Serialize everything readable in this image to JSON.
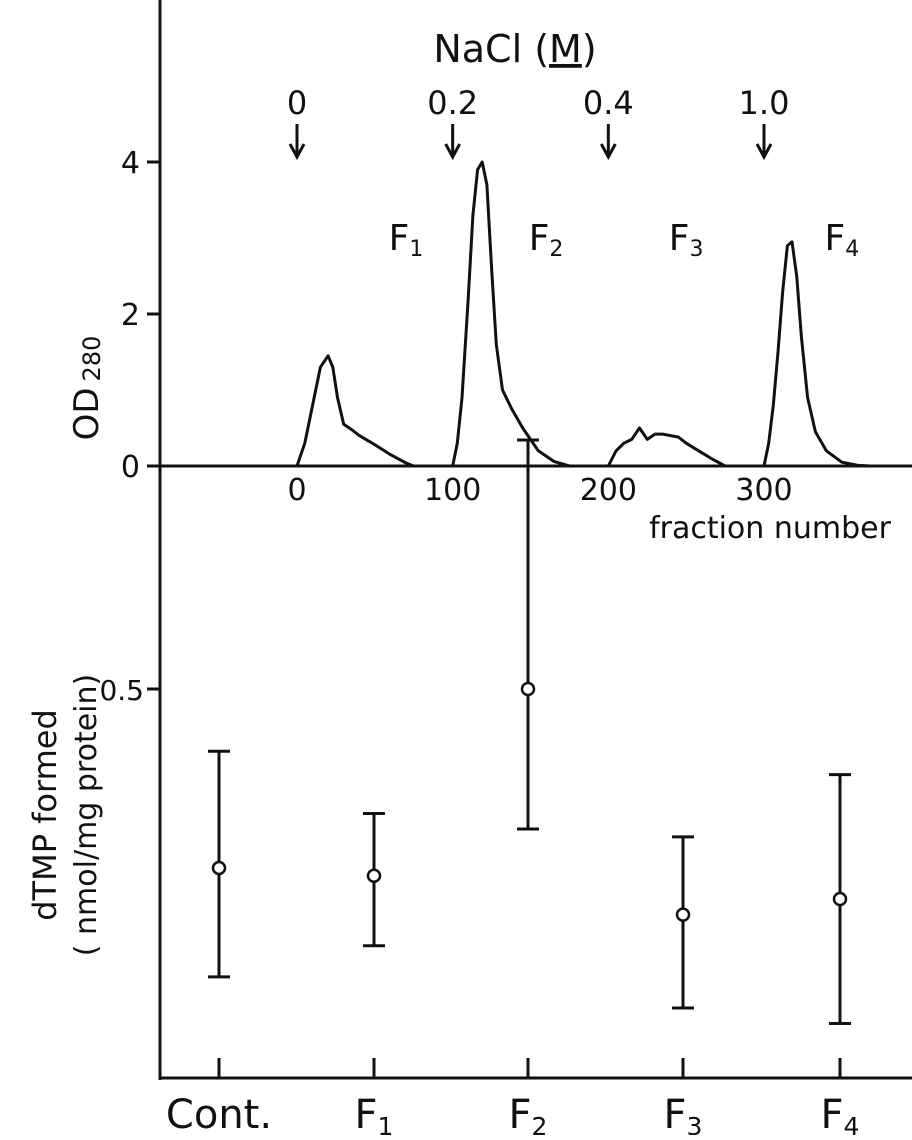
{
  "chart_data": [
    {
      "type": "line",
      "title": "",
      "xlabel": "fraction number",
      "ylabel": "OD 280",
      "ylabel_main": "OD",
      "ylabel_sub": "280",
      "xlim": [
        -40,
        385
      ],
      "ylim": [
        0,
        6
      ],
      "x_ticks": [
        0,
        100,
        200,
        300
      ],
      "x_tick_labels": [
        "0",
        "100",
        "200",
        "300"
      ],
      "y_ticks": [
        0,
        2,
        4
      ],
      "y_tick_labels": [
        "0",
        "2",
        "4"
      ],
      "salt_label": "NaCl (M)",
      "salt_label_main": "NaCl (",
      "salt_label_unit": "M",
      "salt_label_close": ")",
      "salt_steps": [
        {
          "x": 0,
          "label": "0"
        },
        {
          "x": 100,
          "label": "0.2"
        },
        {
          "x": 200,
          "label": "0.4"
        },
        {
          "x": 300,
          "label": "1.0"
        }
      ],
      "peak_labels": [
        {
          "x": 70,
          "y": 3.0,
          "label": "F",
          "sub": "1"
        },
        {
          "x": 160,
          "y": 3.0,
          "label": "F",
          "sub": "2"
        },
        {
          "x": 250,
          "y": 3.0,
          "label": "F",
          "sub": "3"
        },
        {
          "x": 350,
          "y": 3.0,
          "label": "F",
          "sub": "4"
        }
      ],
      "series": [
        {
          "x": [
            0,
            5,
            10,
            15,
            20,
            23,
            26,
            30,
            35,
            40,
            50,
            60,
            70,
            75,
            100,
            103,
            106,
            110,
            113,
            116,
            119,
            122,
            125,
            128,
            132,
            138,
            145,
            155,
            165,
            175,
            200,
            205,
            210,
            215,
            220,
            225,
            230,
            235,
            240,
            245,
            250,
            258,
            266,
            275,
            300,
            303,
            306,
            309,
            312,
            315,
            318,
            321,
            324,
            328,
            333,
            340,
            350,
            360,
            368
          ],
          "y": [
            0,
            0.3,
            0.8,
            1.3,
            1.45,
            1.3,
            0.9,
            0.55,
            0.48,
            0.4,
            0.28,
            0.15,
            0.04,
            0,
            0,
            0.3,
            0.9,
            2.2,
            3.3,
            3.9,
            4.0,
            3.7,
            2.6,
            1.6,
            1.0,
            0.75,
            0.5,
            0.2,
            0.06,
            0,
            0,
            0.2,
            0.3,
            0.35,
            0.5,
            0.35,
            0.42,
            0.42,
            0.4,
            0.38,
            0.3,
            0.2,
            0.1,
            0,
            0,
            0.3,
            0.8,
            1.5,
            2.3,
            2.9,
            2.95,
            2.5,
            1.7,
            0.9,
            0.45,
            0.2,
            0.05,
            0.01,
            0
          ]
        }
      ]
    },
    {
      "type": "scatter",
      "title": "",
      "xlabel": "",
      "ylabel": "dTMP formed ( nmol/mg protein)",
      "ylabel_line1": "dTMP formed",
      "ylabel_line2": "( nmol/mg protein)",
      "ylim": [
        0,
        0.9
      ],
      "y_ticks": [
        0.5
      ],
      "y_tick_labels": [
        "0.5"
      ],
      "categories": [
        {
          "label": "Cont.",
          "sub": ""
        },
        {
          "label": "F",
          "sub": "1"
        },
        {
          "label": "F",
          "sub": "2"
        },
        {
          "label": "F",
          "sub": "3"
        },
        {
          "label": "F",
          "sub": "4"
        }
      ],
      "series": [
        {
          "values": [
            0.27,
            0.26,
            0.5,
            0.21,
            0.23
          ],
          "err_low": [
            0.13,
            0.17,
            0.32,
            0.09,
            0.07
          ],
          "err_high": [
            0.42,
            0.34,
            0.82,
            0.31,
            0.39
          ]
        }
      ]
    }
  ]
}
